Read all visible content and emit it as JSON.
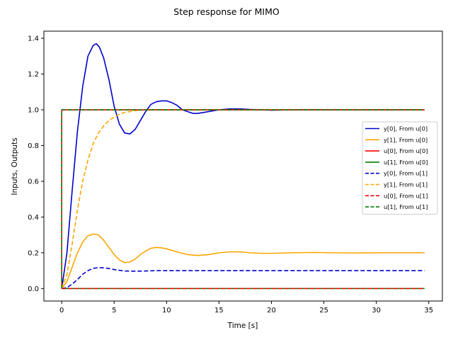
{
  "chart_data": {
    "type": "line",
    "title": "Step response for MIMO",
    "xlabel": "Time [s]",
    "ylabel": "Inputs, Outputs",
    "xlim": [
      -1.7,
      36.3
    ],
    "ylim": [
      -0.07,
      1.44
    ],
    "xticks": [
      0,
      5,
      10,
      15,
      20,
      25,
      30,
      35
    ],
    "yticks": [
      0.0,
      0.2,
      0.4,
      0.6,
      0.8,
      1.0,
      1.2,
      1.4
    ],
    "xtick_labels": [
      "0",
      "5",
      "10",
      "15",
      "20",
      "25",
      "30",
      "35"
    ],
    "ytick_labels": [
      "0.0",
      "0.2",
      "0.4",
      "0.6",
      "0.8",
      "1.0",
      "1.2",
      "1.4"
    ],
    "grid": false,
    "legend_position": "center-right",
    "series": [
      {
        "name": "y[0], From u[0]",
        "color": "#0000cc",
        "dash": "solid",
        "x": [
          0,
          0.5,
          1,
          1.5,
          2,
          2.5,
          3,
          3.3,
          3.6,
          4,
          4.5,
          5,
          5.5,
          6,
          6.5,
          7,
          7.5,
          8,
          8.5,
          9,
          9.5,
          10,
          10.5,
          11,
          11.5,
          12,
          12.5,
          13,
          13.5,
          14,
          15,
          16,
          17,
          18,
          19,
          20,
          22,
          24,
          26,
          28,
          30,
          32,
          34.6
        ],
        "y": [
          0,
          0.2,
          0.55,
          0.88,
          1.13,
          1.3,
          1.36,
          1.37,
          1.35,
          1.29,
          1.17,
          1.02,
          0.92,
          0.87,
          0.865,
          0.89,
          0.94,
          0.99,
          1.03,
          1.045,
          1.05,
          1.05,
          1.04,
          1.025,
          1.0,
          0.99,
          0.98,
          0.98,
          0.985,
          0.99,
          1.0,
          1.005,
          1.005,
          1.002,
          1.0,
          0.998,
          1.0,
          1.001,
          1.0,
          1.0,
          1.0,
          1.0,
          1.0
        ]
      },
      {
        "name": "y[1], From u[0]",
        "color": "#ffa500",
        "dash": "solid",
        "x": [
          0,
          0.5,
          1,
          1.5,
          2,
          2.5,
          3,
          3.5,
          4,
          4.5,
          5,
          5.5,
          6,
          6.5,
          7,
          7.5,
          8,
          8.5,
          9,
          9.5,
          10,
          11,
          12,
          13,
          14,
          15,
          16,
          17,
          18,
          19,
          20,
          22,
          24,
          26,
          28,
          30,
          32,
          34.6
        ],
        "y": [
          0,
          0.04,
          0.12,
          0.2,
          0.26,
          0.295,
          0.305,
          0.3,
          0.27,
          0.23,
          0.19,
          0.16,
          0.145,
          0.148,
          0.165,
          0.19,
          0.21,
          0.225,
          0.23,
          0.228,
          0.222,
          0.205,
          0.19,
          0.185,
          0.19,
          0.2,
          0.205,
          0.205,
          0.2,
          0.197,
          0.197,
          0.2,
          0.202,
          0.2,
          0.199,
          0.2,
          0.2,
          0.2
        ]
      },
      {
        "name": "u[0], From u[0]",
        "color": "#ff0000",
        "dash": "solid",
        "x": [
          0,
          0,
          34.6
        ],
        "y": [
          0,
          1,
          1
        ]
      },
      {
        "name": "u[1], From u[0]",
        "color": "#008000",
        "dash": "solid",
        "x": [
          0,
          34.6
        ],
        "y": [
          0,
          0
        ]
      },
      {
        "name": "y[0], From u[1]",
        "color": "#0000cc",
        "dash": "dashed",
        "x": [
          0,
          0.5,
          1,
          1.5,
          2,
          2.5,
          3,
          3.5,
          4,
          4.5,
          5,
          6,
          7,
          8,
          9,
          10,
          12,
          15,
          20,
          25,
          30,
          34.6
        ],
        "y": [
          0,
          0.005,
          0.025,
          0.05,
          0.08,
          0.1,
          0.113,
          0.117,
          0.116,
          0.112,
          0.106,
          0.098,
          0.097,
          0.098,
          0.1,
          0.1,
          0.1,
          0.1,
          0.1,
          0.1,
          0.1,
          0.1
        ]
      },
      {
        "name": "y[1], From u[1]",
        "color": "#ffa500",
        "dash": "dashed",
        "x": [
          0,
          0.5,
          1,
          1.5,
          2,
          2.5,
          3,
          3.5,
          4,
          4.5,
          5,
          5.5,
          6,
          6.5,
          7,
          7.5,
          8,
          9,
          10,
          12,
          15,
          20,
          25,
          30,
          34.6
        ],
        "y": [
          0,
          0.08,
          0.25,
          0.44,
          0.6,
          0.72,
          0.81,
          0.87,
          0.91,
          0.94,
          0.96,
          0.975,
          0.985,
          0.99,
          0.995,
          0.998,
          1.0,
          1.0,
          1.0,
          1.0,
          1.0,
          1.0,
          1.0,
          1.0,
          1.0
        ]
      },
      {
        "name": "u[0], From u[1]",
        "color": "#ff0000",
        "dash": "dashed",
        "x": [
          0,
          34.6
        ],
        "y": [
          0,
          0
        ]
      },
      {
        "name": "u[1], From u[1]",
        "color": "#008000",
        "dash": "dashed",
        "x": [
          0,
          0,
          34.6
        ],
        "y": [
          0,
          1,
          1
        ]
      }
    ]
  }
}
